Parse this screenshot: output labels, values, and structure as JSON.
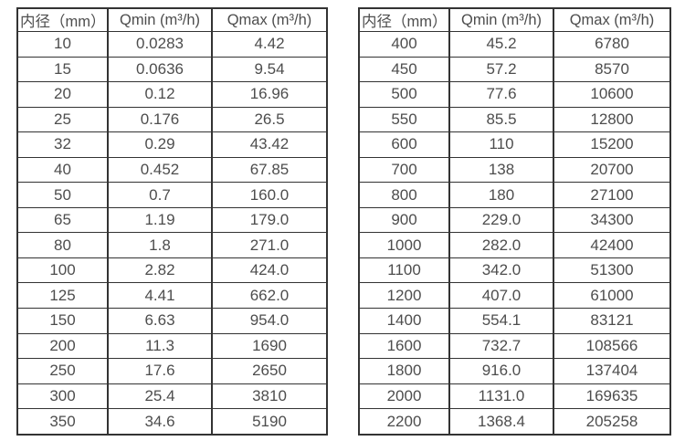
{
  "colors": {
    "border": "#333333",
    "text": "#4d4d4d",
    "background": "#ffffff"
  },
  "tables": [
    {
      "name": "flow-table-small-diameters",
      "headers": [
        "内径（mm）",
        "Qmin (m³/h)",
        "Qmax (m³/h)"
      ],
      "rows": [
        [
          "10",
          "0.0283",
          "4.42"
        ],
        [
          "15",
          "0.0636",
          "9.54"
        ],
        [
          "20",
          "0.12",
          "16.96"
        ],
        [
          "25",
          "0.176",
          "26.5"
        ],
        [
          "32",
          "0.29",
          "43.42"
        ],
        [
          "40",
          "0.452",
          "67.85"
        ],
        [
          "50",
          "0.7",
          "160.0"
        ],
        [
          "65",
          "1.19",
          "179.0"
        ],
        [
          "80",
          "1.8",
          "271.0"
        ],
        [
          "100",
          "2.82",
          "424.0"
        ],
        [
          "125",
          "4.41",
          "662.0"
        ],
        [
          "150",
          "6.63",
          "954.0"
        ],
        [
          "200",
          "11.3",
          "1690"
        ],
        [
          "250",
          "17.6",
          "2650"
        ],
        [
          "300",
          "25.4",
          "3810"
        ],
        [
          "350",
          "34.6",
          "5190"
        ]
      ]
    },
    {
      "name": "flow-table-large-diameters",
      "headers": [
        "内径（mm）",
        "Qmin (m³/h)",
        "Qmax (m³/h)"
      ],
      "rows": [
        [
          "400",
          "45.2",
          "6780"
        ],
        [
          "450",
          "57.2",
          "8570"
        ],
        [
          "500",
          "77.6",
          "10600"
        ],
        [
          "550",
          "85.5",
          "12800"
        ],
        [
          "600",
          "110",
          "15200"
        ],
        [
          "700",
          "138",
          "20700"
        ],
        [
          "800",
          "180",
          "27100"
        ],
        [
          "900",
          "229.0",
          "34300"
        ],
        [
          "1000",
          "282.0",
          "42400"
        ],
        [
          "1100",
          "342.0",
          "51300"
        ],
        [
          "1200",
          "407.0",
          "61000"
        ],
        [
          "1400",
          "554.1",
          "83121"
        ],
        [
          "1600",
          "732.7",
          "108566"
        ],
        [
          "1800",
          "916.0",
          "137404"
        ],
        [
          "2000",
          "1131.0",
          "169635"
        ],
        [
          "2200",
          "1368.4",
          "205258"
        ]
      ]
    }
  ]
}
